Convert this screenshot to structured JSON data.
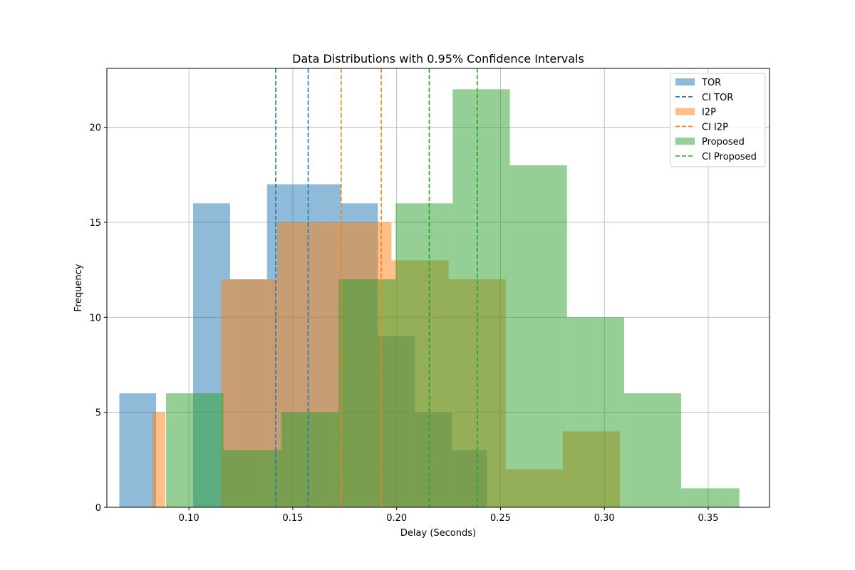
{
  "chart_data": {
    "type": "histogram",
    "title": "Data Distributions with 0.95% Confidence Intervals",
    "xlabel": "Delay (Seconds)",
    "ylabel": "Frequency",
    "xlim": [
      0.0605,
      0.3795
    ],
    "ylim": [
      0,
      23.1
    ],
    "xticks": [
      0.1,
      0.15,
      0.2,
      0.25,
      0.3,
      0.35
    ],
    "xtick_labels": [
      "0.10",
      "0.15",
      "0.20",
      "0.25",
      "0.30",
      "0.35"
    ],
    "yticks": [
      0,
      5,
      10,
      15,
      20
    ],
    "ytick_labels": [
      "0",
      "5",
      "10",
      "15",
      "20"
    ],
    "grid": true,
    "legend_position": "top-right",
    "alpha": 0.5,
    "series": [
      {
        "name": "TOR",
        "color": "#1f77b4",
        "bin_edges": [
          0.0665,
          0.0842,
          0.102,
          0.1198,
          0.1376,
          0.1554,
          0.1732,
          0.191,
          0.2088,
          0.2266,
          0.2435
        ],
        "counts": [
          6,
          0,
          16,
          12,
          17,
          17,
          16,
          9,
          5,
          3
        ]
      },
      {
        "name": "I2P",
        "color": "#ff7f0e",
        "bin_edges": [
          0.0825,
          0.0886,
          0.1155,
          0.1425,
          0.17,
          0.1975,
          0.225,
          0.2525,
          0.28,
          0.3075,
          0.3365
        ],
        "counts": [
          5,
          0,
          12,
          15,
          15,
          13,
          12,
          2,
          4,
          0
        ]
      },
      {
        "name": "Proposed",
        "color": "#2ca02c",
        "bin_edges": [
          0.089,
          0.1166,
          0.1445,
          0.172,
          0.1995,
          0.227,
          0.2545,
          0.282,
          0.3095,
          0.337,
          0.365
        ],
        "counts": [
          6,
          3,
          5,
          12,
          16,
          22,
          18,
          10,
          6,
          1
        ]
      }
    ],
    "confidence_intervals": [
      {
        "name": "CI TOR",
        "color": "#1f77b4",
        "lower": 0.1418,
        "upper": 0.1574
      },
      {
        "name": "CI I2P",
        "color": "#ff7f0e",
        "lower": 0.1733,
        "upper": 0.1926
      },
      {
        "name": "CI Proposed",
        "color": "#2ca02c",
        "lower": 0.2157,
        "upper": 0.2388
      }
    ],
    "legend": [
      "TOR",
      "CI TOR",
      "I2P",
      "CI I2P",
      "Proposed",
      "CI Proposed"
    ]
  }
}
